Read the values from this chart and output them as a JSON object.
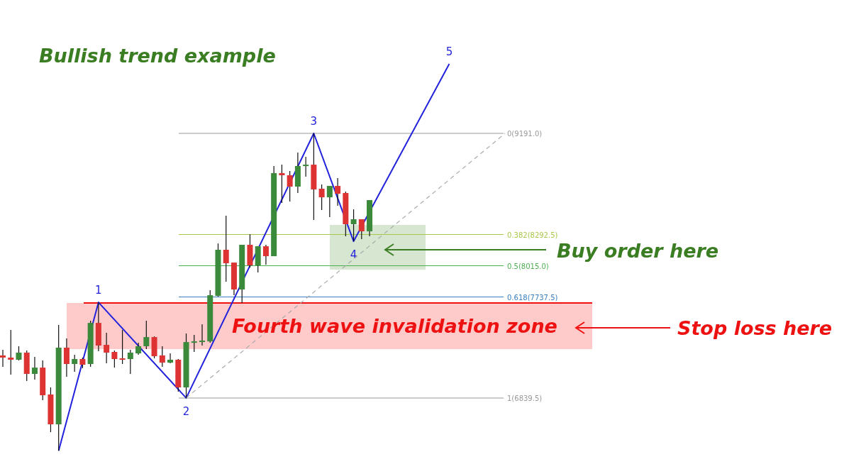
{
  "chart_data": {
    "type": "candlestick",
    "title": "Bullish trend example",
    "categories": [
      null,
      null,
      null,
      null,
      null,
      null,
      null,
      null,
      null,
      null,
      null,
      null,
      null,
      null,
      null,
      null,
      null,
      null,
      null,
      null,
      null,
      null,
      null,
      null,
      null,
      null,
      null,
      null,
      null,
      null,
      null,
      null,
      null,
      null,
      null,
      null,
      null,
      null,
      null,
      null,
      null,
      null,
      null,
      null,
      null,
      null,
      null,
      null,
      null,
      null,
      null,
      null,
      null,
      null,
      null,
      null,
      null,
      null,
      null,
      null,
      null,
      null,
      null,
      null
    ],
    "ylim": [
      6209,
      10376
    ],
    "series": [
      {
        "colors": [
          "#dd3333",
          "#dd3333",
          "#3b8a3b",
          "#dd3333",
          "#3b8a3b",
          "#dd3333",
          "#dd3333",
          "#3b8a3b",
          "#dd3333",
          "#3b8a3b",
          "#dd3333",
          "#3b8a3b",
          "#dd3333",
          "#dd3333",
          "#dd3333",
          "#dd3333",
          "#3b8a3b",
          "#3b8a3b",
          "#3b8a3b",
          "#dd3333",
          "#dd3333",
          "#3b8a3b",
          "#dd3333",
          "#3b8a3b",
          "#3b8a3b",
          "#3b8a3b",
          "#3b8a3b",
          "#3b8a3b",
          "#dd3333",
          "#dd3333",
          "#3b8a3b",
          "#dd3333",
          "#3b8a3b",
          "#dd3333",
          "#3b8a3b",
          "#dd3333",
          "#dd3333",
          "#3b8a3b",
          "#3b8a3b",
          "#dd3333",
          "#dd3333",
          "#3b8a3b",
          "#dd3333",
          "#dd3333",
          "#3b8a3b",
          "#dd3333",
          "#3b8a3b",
          null,
          null,
          null,
          null,
          null,
          null,
          null,
          null,
          null,
          null,
          null,
          null,
          null,
          null,
          null,
          null,
          null
        ],
        "ohlc": [
          [
            7218,
            7268,
            7117,
            7199
          ],
          [
            7199,
            7444,
            7047,
            7180
          ],
          [
            7180,
            7300,
            7173,
            7243
          ],
          [
            7243,
            7262,
            6991,
            7054
          ],
          [
            7054,
            7205,
            7003,
            7110
          ],
          [
            7110,
            7173,
            6820,
            6864
          ],
          [
            6871,
            6934,
            6536,
            6606
          ],
          [
            6606,
            7488,
            6372,
            7287
          ],
          [
            7287,
            7369,
            7028,
            7142
          ],
          [
            7142,
            7224,
            7072,
            7186
          ],
          [
            7186,
            7199,
            7104,
            7135
          ],
          [
            7142,
            7526,
            7117,
            7507
          ],
          [
            7507,
            7690,
            7255,
            7306
          ],
          [
            7312,
            7419,
            7148,
            7243
          ],
          [
            7249,
            7262,
            7110,
            7186
          ],
          [
            7192,
            7444,
            7142,
            7186
          ],
          [
            7186,
            7268,
            7054,
            7243
          ],
          [
            7236,
            7331,
            7224,
            7300
          ],
          [
            7300,
            7526,
            7274,
            7381
          ],
          [
            7381,
            7387,
            7192,
            7211
          ],
          [
            7218,
            7300,
            7117,
            7154
          ],
          [
            7154,
            7236,
            7148,
            7180
          ],
          [
            7180,
            7186,
            6896,
            6934
          ],
          [
            6934,
            7413,
            6840,
            7337
          ],
          [
            7337,
            7400,
            7249,
            7343
          ],
          [
            7337,
            7495,
            7306,
            7350
          ],
          [
            7343,
            7797,
            7331,
            7753
          ],
          [
            7747,
            8213,
            7741,
            8157
          ],
          [
            8157,
            8459,
            7873,
            8037
          ],
          [
            8043,
            8043,
            7753,
            7804
          ],
          [
            7804,
            8201,
            7684,
            8201
          ],
          [
            8201,
            8295,
            7999,
            8018
          ],
          [
            8018,
            8188,
            7955,
            8188
          ],
          [
            8188,
            8201,
            8024,
            8100
          ],
          [
            8100,
            8901,
            8100,
            8838
          ],
          [
            8838,
            8913,
            8573,
            8819
          ],
          [
            8819,
            8857,
            8585,
            8718
          ],
          [
            8718,
            9020,
            8661,
            8901
          ],
          [
            8901,
            8983,
            8806,
            8913
          ],
          [
            8913,
            9191,
            8421,
            8693
          ],
          [
            8699,
            8737,
            8510,
            8623
          ],
          [
            8623,
            8724,
            8447,
            8724
          ],
          [
            8724,
            8793,
            8548,
            8655
          ],
          [
            8661,
            8674,
            8276,
            8384
          ],
          [
            8384,
            8516,
            8232,
            8428
          ],
          [
            8428,
            8428,
            8251,
            8321
          ],
          [
            8321,
            8598,
            8276,
            8598
          ],
          null,
          null,
          null,
          null,
          null,
          null,
          null,
          null,
          null,
          null,
          null,
          null,
          null,
          null,
          null,
          null,
          null
        ]
      },
      {
        "type": "line",
        "color": "#2222dd",
        "values": [
          null,
          null,
          null,
          null,
          null,
          null,
          null,
          6372,
          null,
          null,
          null,
          null,
          7690,
          null,
          null,
          null,
          null,
          null,
          null,
          null,
          null,
          null,
          null,
          6840,
          null,
          null,
          null,
          null,
          null,
          null,
          null,
          null,
          null,
          null,
          null,
          null,
          null,
          null,
          null,
          9191,
          null,
          null,
          null,
          null,
          8232,
          null,
          null,
          null,
          null,
          null,
          null,
          null,
          null,
          null,
          null,
          null,
          9809,
          null,
          null,
          null,
          null,
          null,
          null,
          null
        ]
      },
      {
        "type": "line",
        "color": "#aaaaaa",
        "line_style": "dashed",
        "values": [
          null,
          null,
          null,
          null,
          null,
          null,
          null,
          null,
          null,
          null,
          null,
          null,
          null,
          null,
          null,
          null,
          null,
          null,
          null,
          null,
          null,
          null,
          null,
          6840,
          null,
          null,
          null,
          null,
          null,
          null,
          null,
          null,
          null,
          null,
          null,
          null,
          null,
          null,
          null,
          null,
          null,
          null,
          null,
          null,
          null,
          null,
          null,
          null,
          null,
          null,
          null,
          null,
          null,
          null,
          null,
          null,
          null,
          null,
          null,
          null,
          null,
          null,
          null,
          9191
        ]
      }
    ],
    "ref_lines": [
      {
        "axis": "y",
        "value": 9191,
        "label": "0(9191.0)",
        "color": "#999999"
      },
      {
        "axis": "y",
        "value": 8292.5,
        "label": "0.382(8292.5)",
        "color": "#a8c84a"
      },
      {
        "axis": "y",
        "value": 8015,
        "label": "0.5(8015.0)",
        "color": "#4caf50"
      },
      {
        "axis": "y",
        "value": 7737.5,
        "label": "0.618(7737.5)",
        "color": "#3a7fc0"
      },
      {
        "axis": "y",
        "value": 6839.5,
        "label": "1(6839.5)",
        "color": "#999999"
      },
      {
        "axis": "y",
        "value": 7684,
        "color": "#ee1111"
      }
    ],
    "bands": [
      {
        "axis": "y",
        "from": 7274,
        "to": 7684,
        "label": "Fourth wave invalidation zone",
        "color": "#ffc4c4"
      },
      {
        "axis": "y",
        "from": 7980,
        "to": 8378,
        "color": "#d3e3cc"
      }
    ],
    "annotations": [
      "Buy order here",
      "Stop loss here",
      {
        "text": "1",
        "y": 7690
      },
      {
        "text": "2",
        "y": 6840
      },
      {
        "text": "3",
        "y": 9191
      },
      {
        "text": "4",
        "y": 8232
      },
      {
        "text": "5",
        "y": 9809
      }
    ]
  }
}
